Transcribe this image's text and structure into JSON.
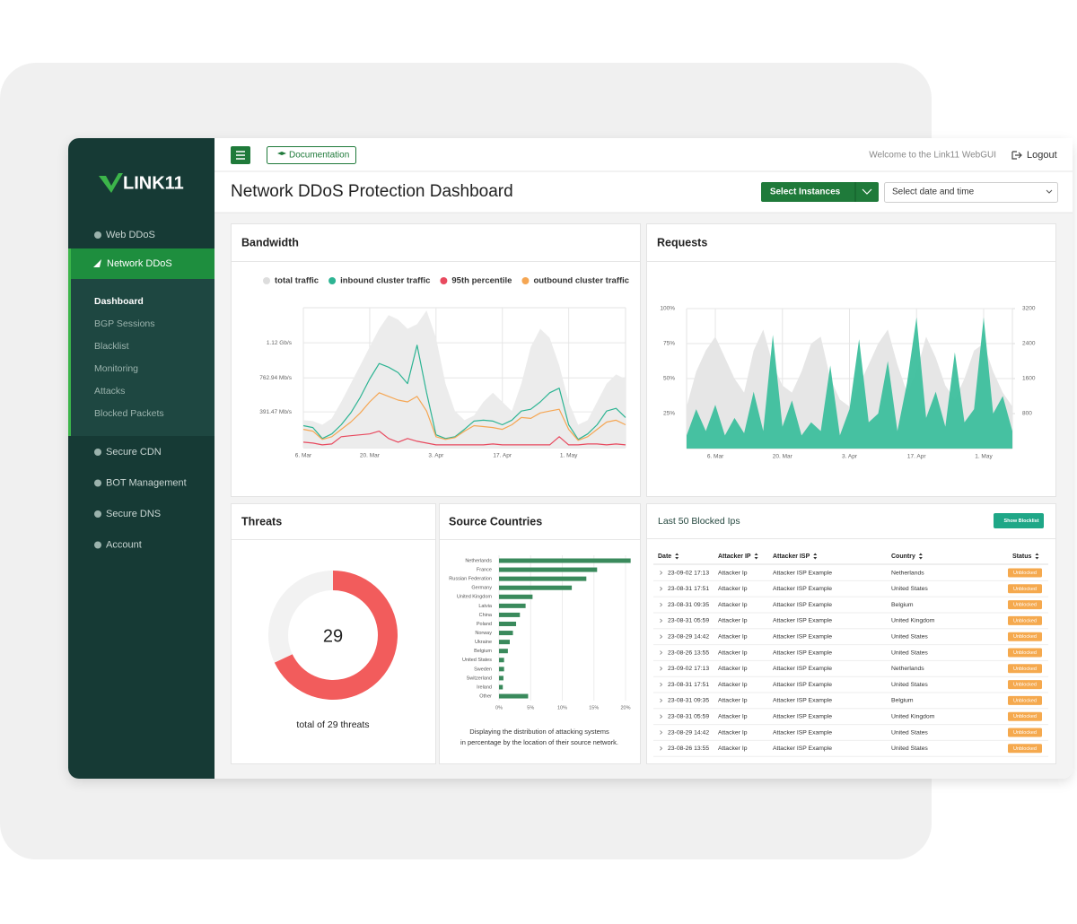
{
  "sidebar": {
    "logo": "LINK11",
    "nav": [
      {
        "label": "Web DDoS"
      },
      {
        "label": "Network DDoS",
        "active": true,
        "active_child": 0,
        "children": [
          "Dashboard",
          "BGP Sessions",
          "Blacklist",
          "Monitoring",
          "Attacks",
          "Blocked Packets"
        ]
      },
      {
        "label": "Secure CDN"
      },
      {
        "label": "BOT Management"
      },
      {
        "label": "Secure DNS"
      },
      {
        "label": "Account"
      }
    ]
  },
  "header": {
    "documentation": "Documentation",
    "welcome": "Welcome to the Link11 WebGUI",
    "logout": "Logout"
  },
  "page": {
    "title": "Network DDoS Protection Dashboard",
    "select_instances": "Select Instances",
    "date_select": "Select date and time"
  },
  "bandwidth": {
    "title": "Bandwidth",
    "chart": {
      "type": "line",
      "categories": [
        "6. Mar",
        null,
        null,
        null,
        null,
        null,
        null,
        "20. Mar",
        null,
        null,
        null,
        null,
        null,
        null,
        "3. Apr",
        null,
        null,
        null,
        null,
        null,
        null,
        "17. Apr",
        null,
        null,
        null,
        null,
        null,
        null,
        "1. May",
        null,
        null,
        null,
        null,
        null,
        null
      ],
      "series": [
        {
          "name": "total traffic",
          "color": "#ececec",
          "legend_color": "#dddddd",
          "area": true,
          "values": [
            300,
            290,
            250,
            320,
            500,
            700,
            900,
            1100,
            1300,
            1450,
            1400,
            1300,
            1350,
            1500,
            1200,
            700,
            400,
            300,
            350,
            500,
            600,
            500,
            400,
            700,
            1100,
            1300,
            1200,
            900,
            500,
            250,
            300,
            500,
            700,
            800,
            750
          ]
        },
        {
          "name": "inbound cluster traffic",
          "color": "#2db493",
          "values": [
            240,
            220,
            100,
            150,
            250,
            380,
            550,
            750,
            920,
            880,
            820,
            700,
            1120,
            600,
            140,
            100,
            120,
            200,
            290,
            300,
            290,
            250,
            300,
            400,
            420,
            500,
            600,
            650,
            250,
            90,
            150,
            250,
            400,
            430,
            330
          ]
        },
        {
          "name": "95th percentile",
          "color": "#e84a5f",
          "values": [
            60,
            50,
            30,
            40,
            120,
            130,
            140,
            150,
            180,
            100,
            60,
            100,
            70,
            50,
            30,
            30,
            30,
            30,
            30,
            30,
            40,
            30,
            30,
            30,
            30,
            30,
            30,
            120,
            30,
            30,
            40,
            40,
            30,
            40,
            30
          ]
        },
        {
          "name": "outbound cluster traffic",
          "color": "#f5a653",
          "values": [
            200,
            180,
            90,
            120,
            200,
            280,
            380,
            500,
            600,
            560,
            520,
            500,
            560,
            400,
            120,
            90,
            110,
            180,
            240,
            230,
            220,
            200,
            250,
            330,
            320,
            380,
            400,
            420,
            200,
            80,
            120,
            200,
            280,
            300,
            250
          ]
        }
      ],
      "ylim": [
        0,
        1530
      ],
      "yticks": [
        {
          "value": 391.47,
          "label": "391.47 Mb/s"
        },
        {
          "value": 762.94,
          "label": "762.94 Mb/s"
        },
        {
          "value": 1146.88,
          "label": "1.12 Gb/s"
        }
      ],
      "grid": true
    }
  },
  "requests": {
    "title": "Requests",
    "chart": {
      "type": "area",
      "categories": [
        null,
        null,
        null,
        "6. Mar",
        null,
        null,
        null,
        null,
        null,
        null,
        "20. Mar",
        null,
        null,
        null,
        null,
        null,
        null,
        "3. Apr",
        null,
        null,
        null,
        null,
        null,
        null,
        "17. Apr",
        null,
        null,
        null,
        null,
        null,
        null,
        "1. May",
        null,
        null,
        null
      ],
      "series": [
        {
          "color": "#e6e6e6",
          "values": [
            30,
            55,
            70,
            80,
            65,
            50,
            40,
            70,
            85,
            60,
            45,
            40,
            55,
            75,
            80,
            50,
            35,
            30,
            45,
            60,
            75,
            85,
            60,
            40,
            55,
            80,
            65,
            45,
            35,
            50,
            70,
            75,
            55,
            40,
            30
          ]
        },
        {
          "color": "#3dbf9d",
          "axis": "y2",
          "values": [
            300,
            900,
            400,
            1000,
            300,
            700,
            350,
            1300,
            400,
            2600,
            500,
            1100,
            300,
            600,
            400,
            1900,
            300,
            900,
            2500,
            600,
            800,
            2000,
            400,
            1500,
            3000,
            700,
            1300,
            500,
            2200,
            600,
            900,
            3000,
            800,
            1200,
            400
          ]
        }
      ],
      "ylim": [
        0,
        100
      ],
      "yticks": [
        {
          "value": 25,
          "label": "25%"
        },
        {
          "value": 50,
          "label": "50%"
        },
        {
          "value": 75,
          "label": "75%"
        },
        {
          "value": 100,
          "label": "100%"
        }
      ],
      "y2lim": [
        0,
        3200
      ],
      "y2ticks": [
        800,
        1600,
        2400,
        3200
      ],
      "grid": true
    }
  },
  "threats": {
    "title": "Threats",
    "total": 29,
    "caption": "total of 29 threats",
    "chart": {
      "type": "pie",
      "values": [
        68,
        32
      ],
      "colors": [
        "#f25c5c",
        "#f2f2f2"
      ]
    }
  },
  "source_countries": {
    "title": "Source Countries",
    "chart": {
      "type": "bar",
      "orientation": "horizontal",
      "color": "#3a8a5c",
      "categories": [
        "Netherlands",
        "France",
        "Russian Federation",
        "Germany",
        "United Kingdom",
        "Latvia",
        "China",
        "Poland",
        "Norway",
        "Ukraine",
        "Belgium",
        "United States",
        "Sweden",
        "Switzerland",
        "Ireland",
        "Other"
      ],
      "values": [
        20.8,
        15.5,
        13.8,
        11.5,
        5.3,
        4.2,
        3.3,
        2.7,
        2.2,
        1.7,
        1.4,
        0.8,
        0.8,
        0.7,
        0.6,
        4.6
      ],
      "xlim": [
        0,
        21.5
      ],
      "xticks": [
        {
          "value": 0,
          "label": "0%"
        },
        {
          "value": 5,
          "label": "5%"
        },
        {
          "value": 10,
          "label": "10%"
        },
        {
          "value": 15,
          "label": "15%"
        },
        {
          "value": 20,
          "label": "20%"
        }
      ],
      "grid": true
    },
    "caption": [
      "Displaying the distribution of attacking systems",
      "in percentage by the location of their source network."
    ]
  },
  "blocked_ips": {
    "title": "Last 50 Blocked Ips",
    "button": "Show Blocklist",
    "table": {
      "columns": [
        "Date",
        "Attacker IP",
        "Attacker ISP",
        "Country",
        "Status"
      ],
      "rows": [
        [
          "23-09-02 17:13",
          "Attacker Ip",
          "Attacker ISP Example",
          "Netherlands",
          "Unblocked"
        ],
        [
          "23-08-31 17:51",
          "Attacker Ip",
          "Attacker ISP Example",
          "United States",
          "Unblocked"
        ],
        [
          "23-08-31 09:35",
          "Attacker Ip",
          "Attacker ISP Example",
          "Belgium",
          "Unblocked"
        ],
        [
          "23-08-31 05:59",
          "Attacker Ip",
          "Attacker ISP Example",
          "United Kingdom",
          "Unblocked"
        ],
        [
          "23-08-29 14:42",
          "Attacker Ip",
          "Attacker ISP Example",
          "United States",
          "Unblocked"
        ],
        [
          "23-08-26 13:55",
          "Attacker Ip",
          "Attacker ISP Example",
          "United States",
          "Unblocked"
        ],
        [
          "23-09-02 17:13",
          "Attacker Ip",
          "Attacker ISP Example",
          "Netherlands",
          "Unblocked"
        ],
        [
          "23-08-31 17:51",
          "Attacker Ip",
          "Attacker ISP Example",
          "United States",
          "Unblocked"
        ],
        [
          "23-08-31 09:35",
          "Attacker Ip",
          "Attacker ISP Example",
          "Belgium",
          "Unblocked"
        ],
        [
          "23-08-31 05:59",
          "Attacker Ip",
          "Attacker ISP Example",
          "United Kingdom",
          "Unblocked"
        ],
        [
          "23-08-29 14:42",
          "Attacker Ip",
          "Attacker ISP Example",
          "United States",
          "Unblocked"
        ],
        [
          "23-08-26 13:55",
          "Attacker Ip",
          "Attacker ISP Example",
          "United States",
          "Unblocked"
        ]
      ]
    }
  }
}
